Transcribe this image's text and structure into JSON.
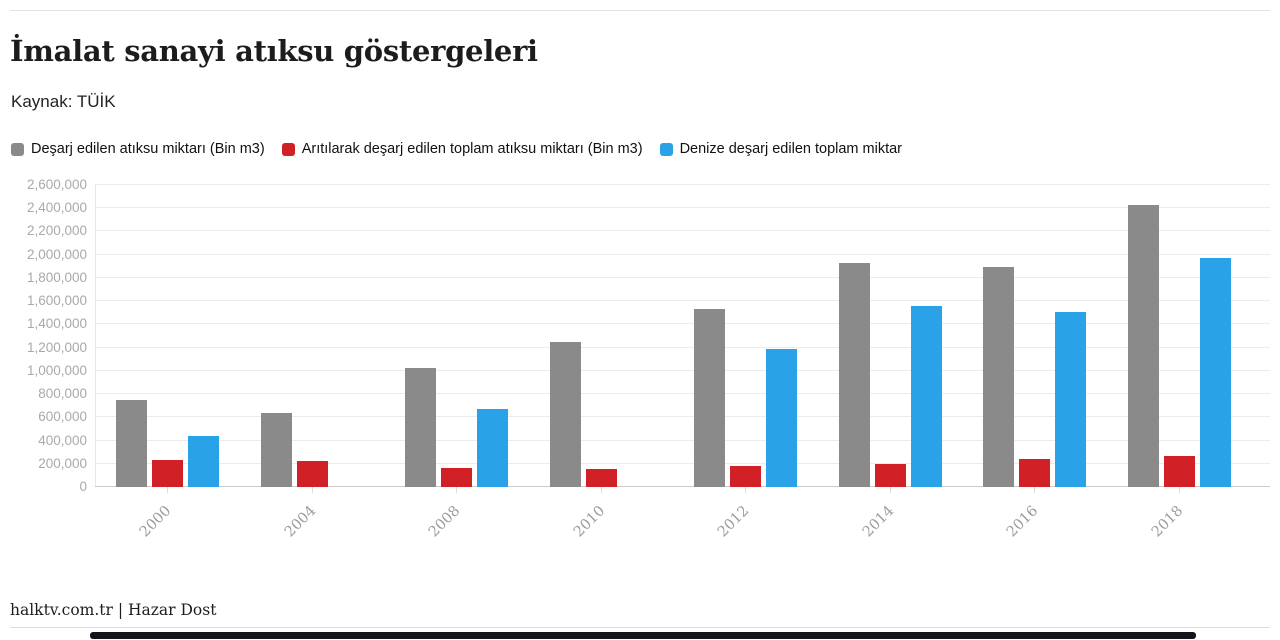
{
  "page": {
    "title": "İmalat sanayi atıksu göstergeleri",
    "source": "Kaynak: TÜİK",
    "footer": "halktv.com.tr | Hazar Dost"
  },
  "colors": {
    "series_gray": "#8a8a8a",
    "series_red": "#d22027",
    "series_blue": "#29a2e8",
    "axis_text": "#a9a9a9",
    "gridline": "#ebebeb",
    "baseline": "#cccccc",
    "scrollbar": "#13131c"
  },
  "legend": {
    "items": [
      {
        "label": "Deşarj edilen atıksu miktarı (Bin m3)",
        "color": "#8a8a8a"
      },
      {
        "label": "Arıtılarak deşarj edilen toplam atıksu miktarı (Bin m3)",
        "color": "#d22027"
      },
      {
        "label": "Denize deşarj edilen toplam miktar",
        "color": "#29a2e8"
      }
    ]
  },
  "chart_data": {
    "type": "bar",
    "title": "İmalat sanayi atıksu göstergeleri",
    "subtitle": "Kaynak: TÜİK",
    "categories": [
      "2000",
      "2004",
      "2008",
      "2010",
      "2012",
      "2014",
      "2016",
      "2018"
    ],
    "series": [
      {
        "name": "Deşarj edilen atıksu miktarı (Bin m3)",
        "color": "#8a8a8a",
        "values": [
          750000,
          635000,
          1025000,
          1250000,
          1530000,
          1930000,
          1895000,
          2430000
        ]
      },
      {
        "name": "Arıtılarak deşarj edilen toplam atıksu miktarı (Bin m3)",
        "color": "#d22027",
        "values": [
          230000,
          225000,
          160000,
          155000,
          180000,
          200000,
          240000,
          270000
        ]
      },
      {
        "name": "Denize deşarj edilen toplam miktar",
        "color": "#29a2e8",
        "values": [
          435000,
          null,
          675000,
          null,
          1190000,
          1555000,
          1510000,
          1970000
        ]
      }
    ],
    "xlabel": "",
    "ylabel": "",
    "ylim": [
      0,
      2600000
    ],
    "ytick_step": 200000,
    "grid": true,
    "legend_position": "top"
  }
}
